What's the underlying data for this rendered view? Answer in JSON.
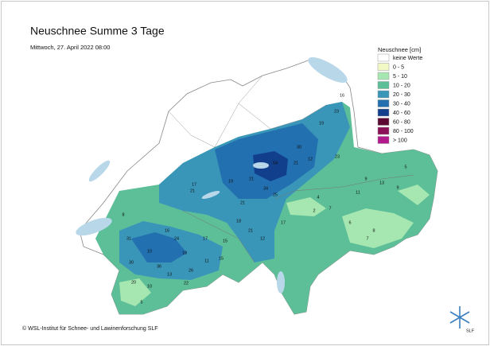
{
  "header": {
    "title": "Neuschnee Summe 3 Tage",
    "subtitle": "Mittwoch, 27. April 2022 08:00"
  },
  "legend": {
    "title": "Neuschnee [cm]",
    "items": [
      {
        "label": "keine Werte",
        "color": "#ffffff"
      },
      {
        "label": "0 - 5",
        "color": "#f2f9c4"
      },
      {
        "label": "5 - 10",
        "color": "#a6e6b1"
      },
      {
        "label": "10 - 20",
        "color": "#5dbf98"
      },
      {
        "label": "20 - 30",
        "color": "#3a96b9"
      },
      {
        "label": "30 - 40",
        "color": "#2270b0"
      },
      {
        "label": "40 - 60",
        "color": "#123f8c"
      },
      {
        "label": "60 - 80",
        "color": "#5c0832"
      },
      {
        "label": "80 - 100",
        "color": "#8c1058"
      },
      {
        "label": "> 100",
        "color": "#b2198c"
      }
    ]
  },
  "stations": [
    19,
    30,
    21,
    23,
    54,
    21,
    19,
    17,
    34,
    25,
    21,
    12,
    21,
    16,
    9,
    13,
    11,
    9,
    4,
    7,
    6,
    8,
    21,
    15,
    24,
    18,
    17,
    31,
    10,
    30,
    36,
    26,
    15,
    20,
    13,
    10,
    11,
    22,
    5,
    8,
    23,
    16,
    2,
    5,
    7,
    17,
    12,
    18
  ],
  "footer": {
    "copyright": "© WSL-Institut für Schnee- und Lawinenforschung SLF",
    "logo_text": "SLF"
  }
}
